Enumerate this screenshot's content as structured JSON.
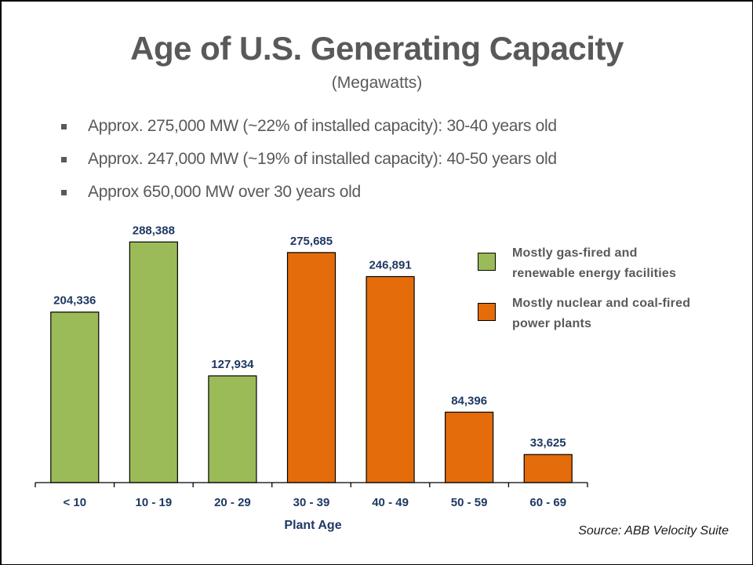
{
  "slide": {
    "title": "Age of U.S. Generating Capacity",
    "subtitle": "(Megawatts)",
    "bullets": [
      "Approx. 275,000 MW (~22% of installed capacity): 30-40 years old",
      "Approx. 247,000 MW (~19% of installed capacity): 40-50 years old",
      "Approx 650,000 MW over 30 years old"
    ],
    "source": "Source: ABB Velocity Suite"
  },
  "colors": {
    "green": "#9BBB59",
    "orange": "#E46C0A",
    "label_navy": "#1F3864",
    "text_gray": "#595959"
  },
  "chart_data": {
    "type": "bar",
    "title": "Age of U.S. Generating Capacity",
    "subtitle": "(Megawatts)",
    "xlabel": "Plant Age",
    "ylabel": "",
    "categories": [
      "< 10",
      "10 - 19",
      "20 - 29",
      "30 - 39",
      "40 - 49",
      "50 - 59",
      "60 - 69"
    ],
    "values": [
      204336,
      288388,
      127934,
      275685,
      246891,
      84396,
      33625
    ],
    "value_labels": [
      "204,336",
      "288,388",
      "127,934",
      "275,685",
      "246,891",
      "84,396",
      "33,625"
    ],
    "groups": [
      "gas",
      "gas",
      "gas",
      "nuclear",
      "nuclear",
      "nuclear",
      "nuclear"
    ],
    "ylim": [
      0,
      300000
    ],
    "grid": false,
    "y_axis_visible": false,
    "legend_position": "top-right",
    "legend": [
      {
        "key": "gas",
        "label_line1": "Mostly gas-fired and",
        "label_line2": "renewable energy facilities",
        "color": "#9BBB59"
      },
      {
        "key": "nuclear",
        "label_line1": "Mostly nuclear and coal-fired",
        "label_line2": "power plants",
        "color": "#E46C0A"
      }
    ]
  }
}
